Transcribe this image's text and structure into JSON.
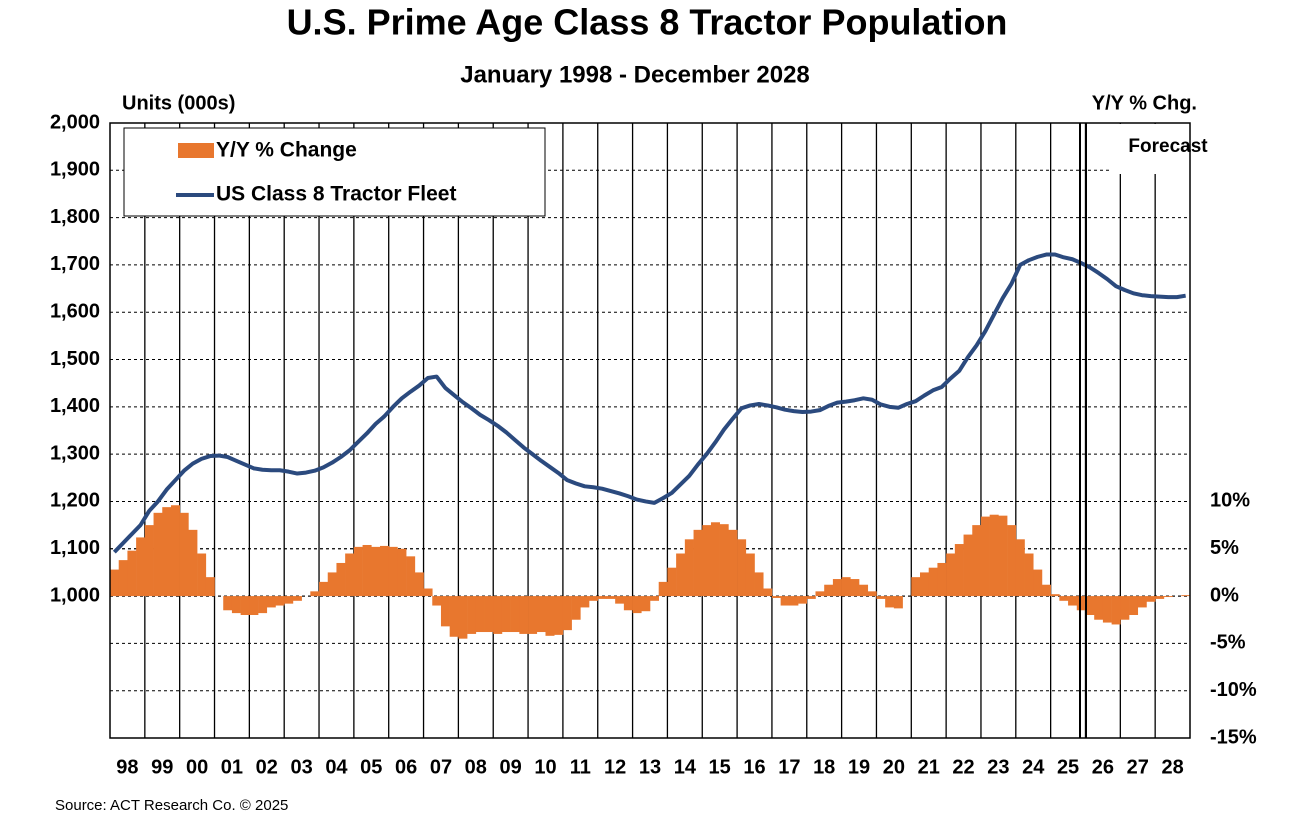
{
  "chart_data": {
    "type": "bar",
    "title": "U.S. Prime Age Class 8 Tractor Population",
    "subtitle": "January 1998 - December 2028",
    "y_axis_label": "Units (000s)",
    "y2_axis_label": "Y/Y % Chg.",
    "annotation": "Forecast",
    "source": "Source:  ACT Research Co. © 2025",
    "categories": [
      "98",
      null,
      null,
      null,
      "99",
      null,
      null,
      null,
      "00",
      null,
      null,
      null,
      "01",
      null,
      null,
      null,
      "02",
      null,
      null,
      null,
      "03",
      null,
      null,
      null,
      "04",
      null,
      null,
      null,
      "05",
      null,
      null,
      null,
      "06",
      null,
      null,
      null,
      "07",
      null,
      null,
      null,
      "08",
      null,
      null,
      null,
      "09",
      null,
      null,
      null,
      "10",
      null,
      null,
      null,
      "11",
      null,
      null,
      null,
      "12",
      null,
      null,
      null,
      "13",
      null,
      null,
      null,
      "14",
      null,
      null,
      null,
      "15",
      null,
      null,
      null,
      "16",
      null,
      null,
      null,
      "17",
      null,
      null,
      null,
      "18",
      null,
      null,
      null,
      "19",
      null,
      null,
      null,
      "20",
      null,
      null,
      null,
      "21",
      null,
      null,
      null,
      "22",
      null,
      null,
      null,
      "23",
      null,
      null,
      null,
      "24",
      null,
      null,
      null,
      "25",
      null,
      null,
      null,
      "26",
      null,
      null,
      null,
      "27",
      null,
      null,
      null,
      "28",
      null,
      null,
      null
    ],
    "series": [
      {
        "name": "Y/Y % Change",
        "type": "bar",
        "axis": "y2",
        "color": "#e8772e",
        "values": [
          2.8,
          3.8,
          4.8,
          6.2,
          7.5,
          8.8,
          9.4,
          9.6,
          8.8,
          7,
          4.5,
          2,
          0,
          -1.5,
          -1.8,
          -2,
          -2,
          -1.8,
          -1.2,
          -1,
          -0.8,
          -0.5,
          0,
          0.5,
          1.5,
          2.5,
          3.5,
          4.5,
          5.2,
          5.4,
          5.2,
          5.3,
          5.2,
          5,
          4.2,
          2.5,
          0.8,
          -1,
          -3.2,
          -4.3,
          -4.5,
          -4,
          -3.8,
          -3.8,
          -4,
          -3.8,
          -3.8,
          -4,
          -4,
          -3.8,
          -4.2,
          -4.1,
          -3.6,
          -2.5,
          -1.2,
          -0.5,
          -0.3,
          -0.3,
          -0.8,
          -1.5,
          -1.8,
          -1.6,
          -0.5,
          1.5,
          3,
          4.5,
          6,
          7,
          7.5,
          7.8,
          7.6,
          7,
          6,
          4.5,
          2.5,
          0.8,
          -0.2,
          -1,
          -1,
          -0.8,
          -0.3,
          0.5,
          1.2,
          1.8,
          2,
          1.8,
          1.2,
          0.5,
          -0.3,
          -1.2,
          -1.3,
          0,
          2,
          2.5,
          3,
          3.5,
          4.5,
          5.5,
          6.5,
          7.5,
          8.4,
          8.6,
          8.5,
          7.5,
          6,
          4.5,
          2.8,
          1.2,
          0.2,
          -0.5,
          -1,
          -1.5,
          -2,
          -2.5,
          -2.8,
          -3,
          -2.5,
          -2,
          -1.2,
          -0.6,
          -0.3,
          -0.1,
          0,
          0.1
        ]
      },
      {
        "name": "US Class 8 Tractor Fleet",
        "type": "line",
        "color": "#2b4a7e",
        "values": [
          1093,
          1112,
          1131,
          1150,
          1180,
          1200,
          1225,
          1245,
          1265,
          1280,
          1290,
          1296,
          1297,
          1294,
          1286,
          1278,
          1270,
          1267,
          1266,
          1266,
          1263,
          1259,
          1261,
          1265,
          1272,
          1282,
          1294,
          1308,
          1326,
          1344,
          1364,
          1380,
          1400,
          1418,
          1432,
          1445,
          1461,
          1464,
          1440,
          1425,
          1410,
          1397,
          1383,
          1372,
          1360,
          1346,
          1330,
          1314,
          1300,
          1286,
          1273,
          1260,
          1245,
          1238,
          1232,
          1230,
          1227,
          1222,
          1217,
          1211,
          1204,
          1200,
          1197,
          1207,
          1218,
          1236,
          1254,
          1278,
          1300,
          1325,
          1352,
          1375,
          1397,
          1403,
          1406,
          1403,
          1399,
          1394,
          1391,
          1389,
          1390,
          1393,
          1402,
          1409,
          1411,
          1414,
          1418,
          1415,
          1405,
          1400,
          1398,
          1406,
          1412,
          1424,
          1435,
          1442,
          1460,
          1476,
          1505,
          1530,
          1560,
          1595,
          1630,
          1660,
          1700,
          1710,
          1717,
          1722,
          1722,
          1716,
          1712,
          1704,
          1695,
          1683,
          1670,
          1655,
          1647,
          1640,
          1636,
          1634,
          1633,
          1632,
          1632,
          1635
        ]
      }
    ],
    "ylim": [
      700,
      2000
    ],
    "yticks": [
      {
        "value": 1000,
        "label": "1,000"
      },
      {
        "value": 1100,
        "label": "1,100"
      },
      {
        "value": 1200,
        "label": "1,200"
      },
      {
        "value": 1300,
        "label": "1,300"
      },
      {
        "value": 1400,
        "label": "1,400"
      },
      {
        "value": 1500,
        "label": "1,500"
      },
      {
        "value": 1600,
        "label": "1,600"
      },
      {
        "value": 1700,
        "label": "1,700"
      },
      {
        "value": 1800,
        "label": "1,800"
      },
      {
        "value": 1900,
        "label": "1,900"
      },
      {
        "value": 2000,
        "label": "2,000"
      }
    ],
    "y2lim": [
      -15,
      50
    ],
    "y2ticks": [
      {
        "value": -15,
        "label": "-15%"
      },
      {
        "value": -10,
        "label": "-10%"
      },
      {
        "value": -5,
        "label": "-5%"
      },
      {
        "value": 0,
        "label": "0%"
      },
      {
        "value": 5,
        "label": "5%"
      },
      {
        "value": 10,
        "label": "10%"
      }
    ],
    "grid": true,
    "legend": "upper left"
  }
}
